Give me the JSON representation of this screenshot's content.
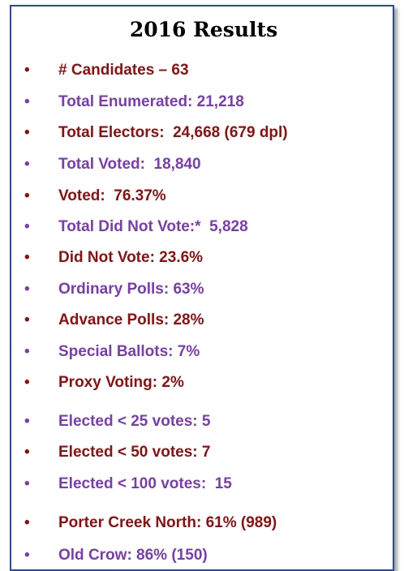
{
  "title": "2016 Results",
  "items": [
    "# Candidates – 63",
    "Total Enumerated: 21,218",
    "Total Electors:  24,668 (679 dpl)",
    "Total Voted:  18,840",
    "Voted:  76.37%",
    "Total Did Not Vote:*  5,828",
    "Did Not Vote: 23.6%",
    "Ordinary Polls: 63%",
    "Advance Polls: 28%",
    "Special Ballots: 7%",
    "Proxy Voting: 2%",
    "Elected < 25 votes: 5",
    "Elected < 50 votes: 7",
    "Elected < 100 votes:  15",
    "Porter Creek North: 61% (989)",
    "Old Crow: 86% (150)"
  ]
}
